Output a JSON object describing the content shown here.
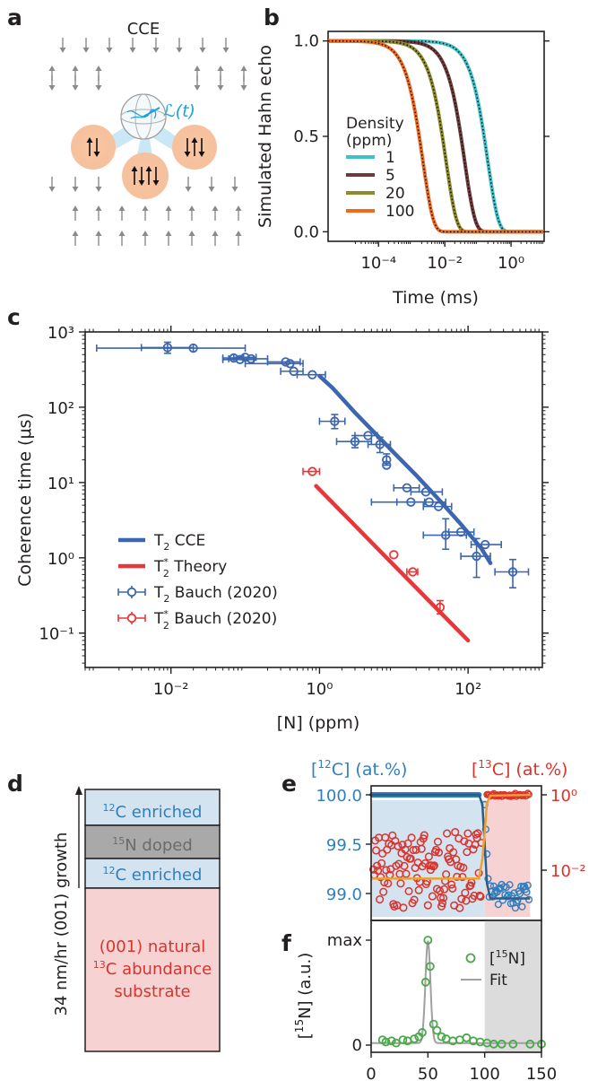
{
  "panel_letters": {
    "a": "a",
    "b": "b",
    "c": "c",
    "d": "d",
    "e": "e",
    "f": "f"
  },
  "colors": {
    "cyan": "#3fc1c9",
    "brown": "#6e3b3b",
    "olive": "#8c8c2a",
    "orange": "#ef6a1e",
    "blue": "#3b66b0",
    "red": "#e8373a",
    "green": "#4aa84a",
    "grey": "#a0a0a0",
    "blue_text": "#2f7fbf",
    "red_text": "#d8342d",
    "light_blue": "#d4e3f0",
    "light_red": "#f6d3d2",
    "dark_grey": "#a9a9a9"
  },
  "panel_a": {
    "title": "CCE",
    "coherence_label": "ℒ(t)",
    "icon": "spin-bath-cluster-diagram"
  },
  "panel_d": {
    "side_label": "34 nm/hr (001) growth",
    "layers": [
      {
        "sup": "12",
        "text": "C enriched"
      },
      {
        "sup": "15",
        "text": "N doped"
      },
      {
        "sup": "12",
        "text": "C enriched"
      }
    ],
    "substrate_line1": "(001) natural",
    "substrate_sup": "13",
    "substrate_line2": "C abundance",
    "substrate_line3": "substrate"
  },
  "chart_data": [
    {
      "panel": "b",
      "type": "line",
      "xlabel": "Time (ms)",
      "ylabel": "Simulated Hahn echo",
      "xscale": "log",
      "xlim": [
        3e-06,
        10
      ],
      "ylim": [
        -0.05,
        1.05
      ],
      "xticks": [
        "10⁻⁴",
        "10⁻²",
        "10⁰"
      ],
      "yticks": [
        "0.0",
        "0.5",
        "1.0"
      ],
      "legend_title": "Density\n(ppm)",
      "legend_title_line1": "Density",
      "legend_title_line2": "(ppm)",
      "legend_position": "left",
      "series": [
        {
          "name": "1",
          "color": "#3fc1c9",
          "decay_time_ms": 0.2,
          "stretch": 1.4
        },
        {
          "name": "5",
          "color": "#6e3b3b",
          "decay_time_ms": 0.04,
          "stretch": 1.4
        },
        {
          "name": "20",
          "color": "#8c8c2a",
          "decay_time_ms": 0.011,
          "stretch": 1.4
        },
        {
          "name": "100",
          "color": "#ef6a1e",
          "decay_time_ms": 0.0022,
          "stretch": 1.4
        }
      ],
      "fit_style": "black dotted"
    },
    {
      "panel": "c",
      "type": "scatter",
      "xlabel": "[N] (ppm)",
      "ylabel": "Coherence time (μs)",
      "xscale": "log",
      "yscale": "log",
      "xlim": [
        0.0007,
        1000
      ],
      "ylim": [
        0.035,
        1000
      ],
      "xticks": [
        "10⁻²",
        "10⁰",
        "10²"
      ],
      "yticks": [
        "10⁻¹",
        "10⁰",
        "10¹",
        "10²",
        "10³"
      ],
      "legend_position": "lower-left",
      "legend": [
        {
          "main": "T",
          "sub": "2",
          "sup": "",
          "rest": " CCE",
          "kind": "line",
          "color": "#3b66b0"
        },
        {
          "main": "T",
          "sub": "2",
          "sup": "*",
          "rest": " Theory",
          "kind": "line",
          "color": "#e8373a"
        },
        {
          "main": "T",
          "sub": "2",
          "sup": "",
          "rest": " Bauch (2020)",
          "kind": "marker",
          "color": "#3b66b0"
        },
        {
          "main": "T",
          "sub": "2",
          "sup": "*",
          "rest": " Bauch (2020)",
          "kind": "marker",
          "color": "#e8373a"
        }
      ],
      "lines": [
        {
          "name": "T2 CCE",
          "color": "#3b66b0",
          "x": [
            1,
            1.5,
            3,
            6,
            10,
            20,
            40,
            80,
            150,
            200
          ],
          "y": [
            260,
            180,
            85,
            42,
            25,
            12.5,
            6,
            2.8,
            1.35,
            0.85
          ]
        },
        {
          "name": "T2* Theory",
          "color": "#e8373a",
          "x": [
            0.9,
            10,
            100
          ],
          "y": [
            9,
            0.8,
            0.08
          ]
        }
      ],
      "points": [
        {
          "name": "T2 Bauch (2020)",
          "color": "#3b66b0",
          "data": [
            {
              "x": 0.009,
              "y": 620,
              "xerr": [
                0.004,
                0.02
              ],
              "yerr": [
                520,
                730
              ]
            },
            {
              "x": 0.02,
              "y": 610,
              "xerr": [
                0.001,
                0.1
              ],
              "yerr": null
            },
            {
              "x": 0.07,
              "y": 450,
              "xerr": [
                0.05,
                0.095
              ],
              "yerr": null
            },
            {
              "x": 0.085,
              "y": 430,
              "xerr": [
                0.05,
                0.13
              ],
              "yerr": null
            },
            {
              "x": 0.1,
              "y": 460,
              "xerr": [
                0.07,
                0.14
              ],
              "yerr": null
            },
            {
              "x": 0.12,
              "y": 440,
              "xerr": [
                0.06,
                0.2
              ],
              "yerr": null
            },
            {
              "x": 0.35,
              "y": 400,
              "xerr": [
                0.2,
                0.55
              ],
              "yerr": null
            },
            {
              "x": 0.4,
              "y": 380,
              "xerr": [
                0.1,
                0.6
              ],
              "yerr": null
            },
            {
              "x": 0.45,
              "y": 300,
              "xerr": [
                0.3,
                0.6
              ],
              "yerr": null
            },
            {
              "x": 0.8,
              "y": 270,
              "xerr": [
                0.5,
                1.2
              ],
              "yerr": null
            },
            {
              "x": 1.6,
              "y": 65,
              "xerr": [
                1.0,
                2.2
              ],
              "yerr": [
                52,
                80
              ]
            },
            {
              "x": 3,
              "y": 35,
              "xerr": [
                1.7,
                5
              ],
              "yerr": [
                29,
                42
              ]
            },
            {
              "x": 4.5,
              "y": 42,
              "xerr": [
                3,
                6
              ],
              "yerr": null
            },
            {
              "x": 6.5,
              "y": 32,
              "xerr": [
                4.5,
                9
              ],
              "yerr": [
                25,
                40
              ]
            },
            {
              "x": 8,
              "y": 20,
              "xerr": null,
              "yerr": [
                17,
                24
              ]
            },
            {
              "x": 8,
              "y": 17,
              "xerr": null,
              "yerr": null
            },
            {
              "x": 15,
              "y": 8.5,
              "xerr": [
                10,
                22
              ],
              "yerr": null
            },
            {
              "x": 17,
              "y": 5.5,
              "xerr": [
                11,
                26
              ],
              "yerr": null
            },
            {
              "x": 27,
              "y": 7.5,
              "xerr": [
                17,
                45
              ],
              "yerr": null
            },
            {
              "x": 30,
              "y": 5.5,
              "xerr": [
                5,
                50
              ],
              "yerr": null
            },
            {
              "x": 40,
              "y": 4.8,
              "xerr": [
                25,
                60
              ],
              "yerr": null
            },
            {
              "x": 50,
              "y": 2.0,
              "xerr": [
                25,
                95
              ],
              "yerr": [
                1.3,
                3.3
              ]
            },
            {
              "x": 80,
              "y": 2.2,
              "xerr": [
                55,
                120
              ],
              "yerr": null
            },
            {
              "x": 130,
              "y": 1.05,
              "xerr": [
                80,
                200
              ],
              "yerr": [
                0.55,
                1.8
              ]
            },
            {
              "x": 170,
              "y": 1.5,
              "xerr": [
                110,
                280
              ],
              "yerr": null
            },
            {
              "x": 400,
              "y": 0.65,
              "xerr": [
                230,
                650
              ],
              "yerr": [
                0.4,
                0.95
              ]
            }
          ]
        },
        {
          "name": "T2* Bauch (2020)",
          "color": "#e8373a",
          "data": [
            {
              "x": 0.8,
              "y": 14,
              "xerr": [
                0.6,
                1.0
              ],
              "yerr": null
            },
            {
              "x": 10,
              "y": 1.1,
              "xerr": null,
              "yerr": null
            },
            {
              "x": 18,
              "y": 0.65,
              "xerr": [
                15,
                21
              ],
              "yerr": null
            },
            {
              "x": 42,
              "y": 0.22,
              "xerr": null,
              "yerr": [
                0.18,
                0.27
              ]
            }
          ]
        }
      ]
    },
    {
      "panel": "e",
      "type": "scatter",
      "left_label": "[¹²C] (at.%)",
      "right_label": "[¹³C] (at.%)",
      "left_label_parts": {
        "pre": "[",
        "sup": "12",
        "post": "C] (at.%)"
      },
      "right_label_parts": {
        "pre": "[",
        "sup": "13",
        "post": "C] (at.%)"
      },
      "yticks_left": [
        "99.0",
        "99.5",
        "100.0"
      ],
      "yticks_right": [
        "10⁻²",
        "10⁰"
      ],
      "xlim": [
        0,
        150
      ],
      "shaded_regions": [
        {
          "x": [
            0,
            100
          ],
          "color": "#d4e3f0"
        },
        {
          "x": [
            100,
            140
          ],
          "color": "#f6d3d2"
        }
      ],
      "series": [
        {
          "name": "[12C]",
          "color": "#2f7fbf",
          "x": [
            0,
            95,
            100,
            105,
            140
          ],
          "y": [
            100.0,
            100.0,
            99.5,
            99.0,
            98.9
          ]
        },
        {
          "name": "[13C]",
          "color": "#d8342d",
          "x": [
            0,
            95,
            100,
            105,
            140
          ],
          "y": [
            0.01,
            0.01,
            0.1,
            1,
            1
          ]
        }
      ]
    },
    {
      "panel": "f",
      "type": "scatter",
      "ylabel": "[¹⁵N] (a.u.)",
      "ylabel_parts": {
        "pre": "[",
        "sup": "15",
        "post": "N] (a.u.)"
      },
      "xticks": [
        "0",
        "50",
        "100",
        "150"
      ],
      "yticks": [
        "0",
        "max"
      ],
      "xlim": [
        0,
        150
      ],
      "shaded_regions": [
        {
          "x": [
            100,
            150
          ],
          "color": "#dcdcdc"
        }
      ],
      "legend": [
        {
          "pre": "[",
          "sup": "15",
          "post": "N]",
          "kind": "marker",
          "color": "#4aa84a"
        },
        {
          "pre": "Fit",
          "sup": "",
          "post": "",
          "kind": "line",
          "color": "#a0a0a0"
        }
      ],
      "fit": {
        "x": [
          0,
          44,
          48,
          50,
          52,
          56,
          100,
          150
        ],
        "y": [
          0.02,
          0.05,
          0.6,
          1.0,
          0.6,
          0.1,
          0.02,
          0.02
        ]
      },
      "points": [
        {
          "x": 10,
          "y": 0.05
        },
        {
          "x": 13,
          "y": 0.03
        },
        {
          "x": 18,
          "y": 0.04
        },
        {
          "x": 22,
          "y": 0.02
        },
        {
          "x": 28,
          "y": 0.05
        },
        {
          "x": 32,
          "y": 0.04
        },
        {
          "x": 38,
          "y": 0.06
        },
        {
          "x": 42,
          "y": 0.08
        },
        {
          "x": 45,
          "y": 0.12
        },
        {
          "x": 48,
          "y": 0.6
        },
        {
          "x": 50,
          "y": 1.0
        },
        {
          "x": 52,
          "y": 0.75
        },
        {
          "x": 55,
          "y": 0.2
        },
        {
          "x": 58,
          "y": 0.14
        },
        {
          "x": 62,
          "y": 0.08
        },
        {
          "x": 66,
          "y": 0.06
        },
        {
          "x": 72,
          "y": 0.04
        },
        {
          "x": 78,
          "y": 0.05
        },
        {
          "x": 84,
          "y": 0.07
        },
        {
          "x": 90,
          "y": 0.04
        },
        {
          "x": 96,
          "y": 0.03
        },
        {
          "x": 102,
          "y": 0.02
        },
        {
          "x": 108,
          "y": 0.01
        },
        {
          "x": 115,
          "y": 0.01
        },
        {
          "x": 125,
          "y": 0.01
        },
        {
          "x": 140,
          "y": 0.01
        },
        {
          "x": 150,
          "y": 0.01
        }
      ]
    }
  ]
}
